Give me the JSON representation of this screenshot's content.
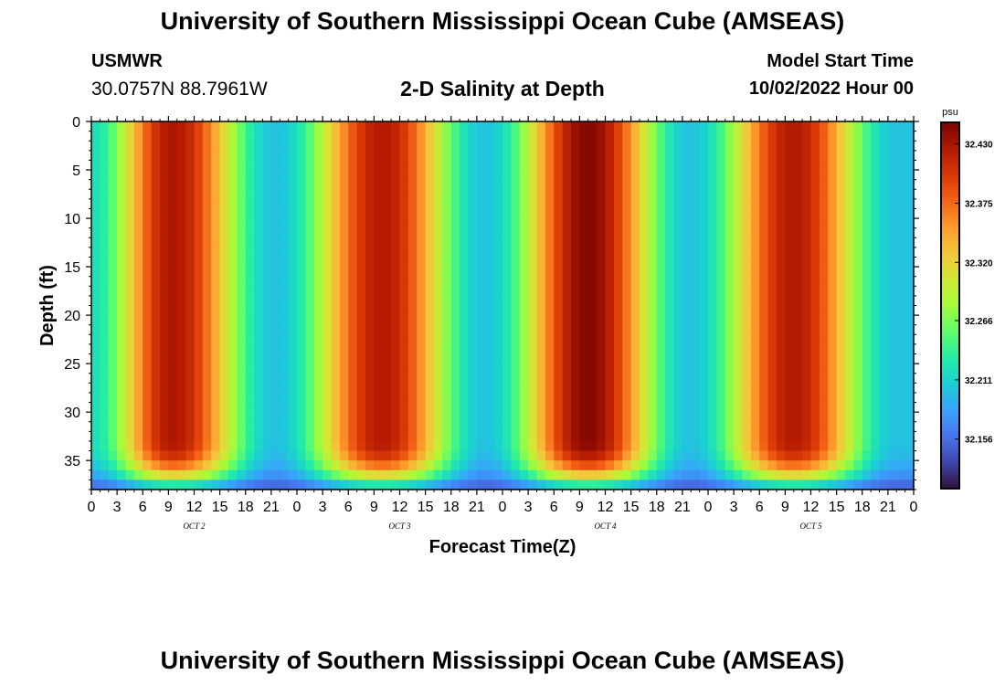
{
  "header": {
    "title": "University of Southern Mississippi Ocean Cube (AMSEAS)",
    "station": "USMWR",
    "coordinates": "30.0757N  88.7961W",
    "subtitle": "2-D Salinity at Depth",
    "start_label": "Model Start Time",
    "start_value": "10/02/2022 Hour 00"
  },
  "footer": {
    "title": "University of Southern Mississippi Ocean Cube (AMSEAS)"
  },
  "colors": {
    "ramp": [
      "#30123b",
      "#4145ab",
      "#4675ed",
      "#39a2fc",
      "#1bcfd4",
      "#24eca6",
      "#61fc6c",
      "#a4fc3b",
      "#d1e834",
      "#f3c63a",
      "#fe9b2d",
      "#f36315",
      "#d93806",
      "#b11901",
      "#7a0402"
    ]
  },
  "chart_data": {
    "type": "heatmap",
    "title": "2-D Salinity at Depth",
    "xlabel": "Forecast Time(Z)",
    "ylabel": "Depth (ft)",
    "x_tick_labels": [
      "0",
      "3",
      "6",
      "9",
      "12",
      "15",
      "18",
      "21",
      "0",
      "3",
      "6",
      "9",
      "12",
      "15",
      "18",
      "21",
      "0",
      "3",
      "6",
      "9",
      "12",
      "15",
      "18",
      "21",
      "0",
      "3",
      "6",
      "9",
      "12",
      "15",
      "18",
      "21",
      "0"
    ],
    "xlim_hours": [
      0,
      96
    ],
    "date_labels": [
      {
        "label": "OCT 2",
        "hour": 12
      },
      {
        "label": "OCT 3",
        "hour": 36
      },
      {
        "label": "OCT 4",
        "hour": 60
      },
      {
        "label": "OCT 5",
        "hour": 84
      }
    ],
    "y_ticks": [
      0,
      5,
      10,
      15,
      20,
      25,
      30,
      35
    ],
    "y_tick_labels": [
      "0",
      "5",
      "10",
      "15",
      "20",
      "25",
      "30",
      "35"
    ],
    "ylim": [
      0,
      38
    ],
    "y_inverted": true,
    "colorbar": {
      "unit": "psu",
      "tick_values": [
        32.43,
        32.375,
        32.32,
        32.266,
        32.211,
        32.156
      ],
      "tick_labels": [
        "32.430",
        "32.375",
        "32.320",
        "32.266",
        "32.211",
        "32.156"
      ],
      "range": [
        32.11,
        32.45
      ]
    },
    "value_pattern": {
      "min_psu": 32.2,
      "max_psu": [
        32.428,
        32.425,
        32.445,
        32.425
      ],
      "peak_hours": [
        9.5,
        34,
        58,
        82
      ],
      "trough_hours": [
        21.5,
        46,
        70,
        94
      ],
      "bottom_depth_start_ft": 33,
      "bottom_min_psu": 32.13
    }
  }
}
